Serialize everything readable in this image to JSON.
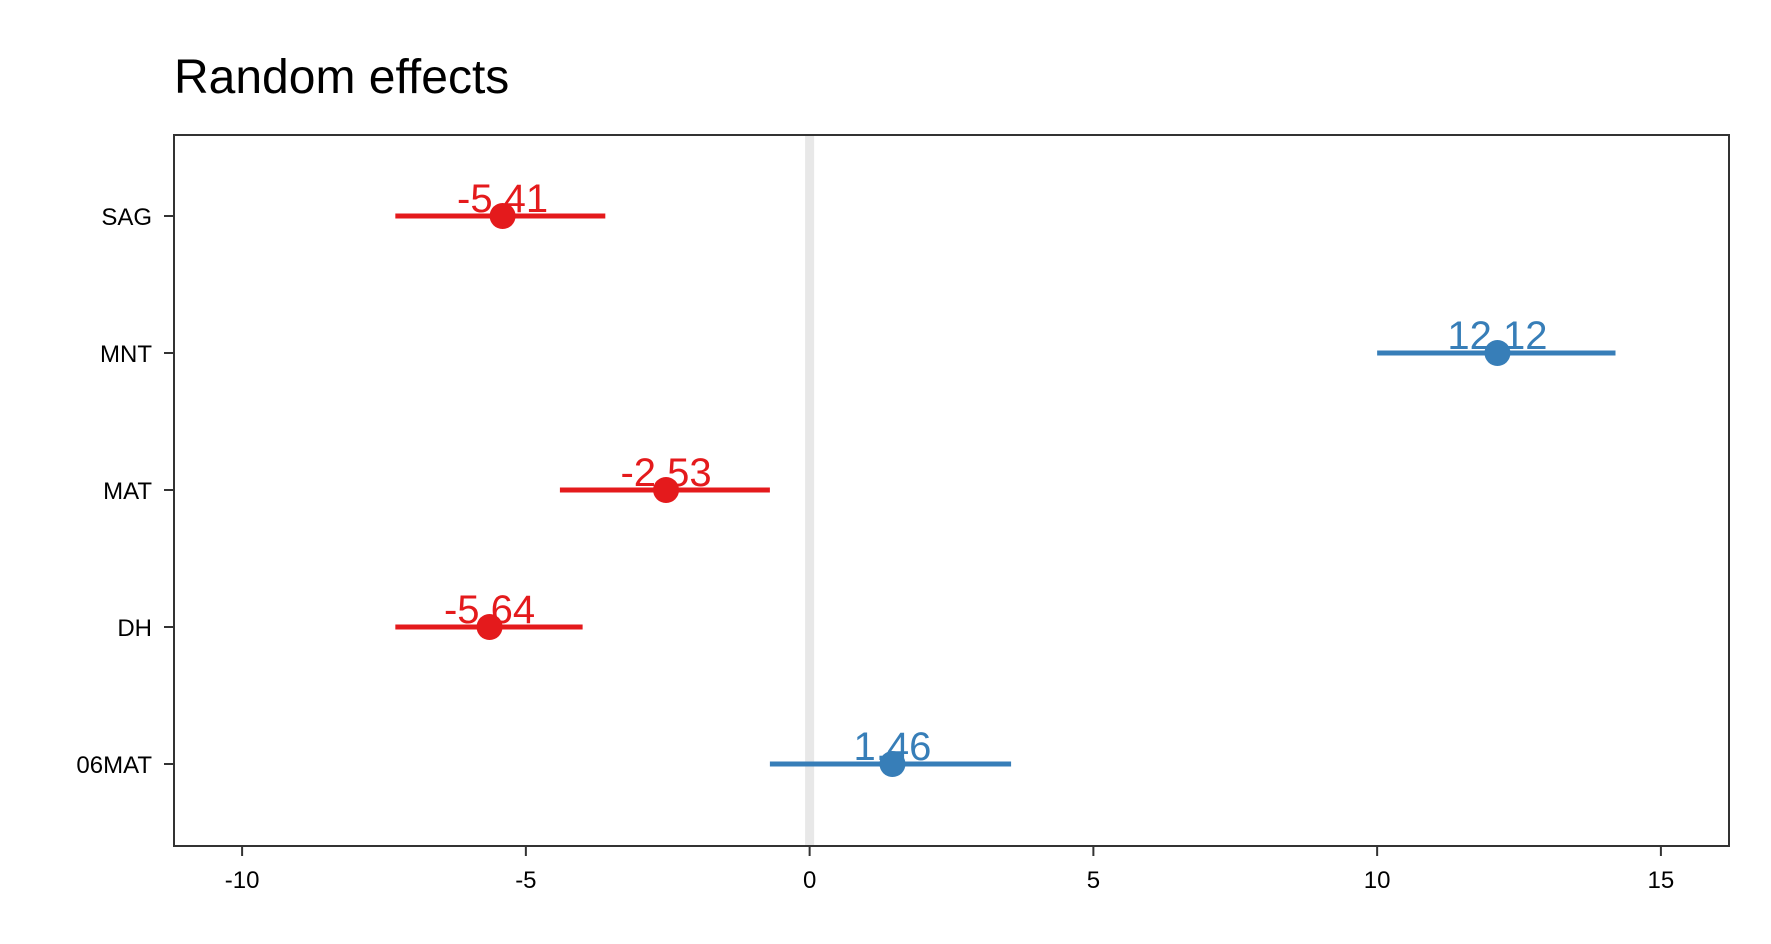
{
  "chart_data": {
    "type": "forest",
    "title": "Random effects",
    "xlabel": "",
    "ylabel": "",
    "xlim": [
      -11.2,
      16.2
    ],
    "xticks": [
      -10,
      -5,
      0,
      5,
      10,
      15
    ],
    "xtick_labels": [
      "-10",
      "-5",
      "0",
      "5",
      "10",
      "15"
    ],
    "categories": [
      "SAG",
      "MNT",
      "MAT",
      "DH",
      "06MAT"
    ],
    "points": [
      {
        "label": "SAG",
        "estimate": -5.41,
        "lower": -7.3,
        "upper": -3.6,
        "value_label": "-5.41"
      },
      {
        "label": "MNT",
        "estimate": 12.12,
        "lower": 10.0,
        "upper": 14.2,
        "value_label": "12.12"
      },
      {
        "label": "MAT",
        "estimate": -2.53,
        "lower": -4.4,
        "upper": -0.7,
        "value_label": "-2.53"
      },
      {
        "label": "DH",
        "estimate": -5.64,
        "lower": -7.3,
        "upper": -4.0,
        "value_label": "-5.64"
      },
      {
        "label": "06MAT",
        "estimate": 1.46,
        "lower": -0.7,
        "upper": 3.55,
        "value_label": "1.46"
      }
    ],
    "reference_line": 0,
    "grid": false,
    "colors": {
      "negative": "#e41a1c",
      "positive": "#377eb8",
      "reference": "#e8e8e8",
      "axis": "#333333"
    }
  }
}
